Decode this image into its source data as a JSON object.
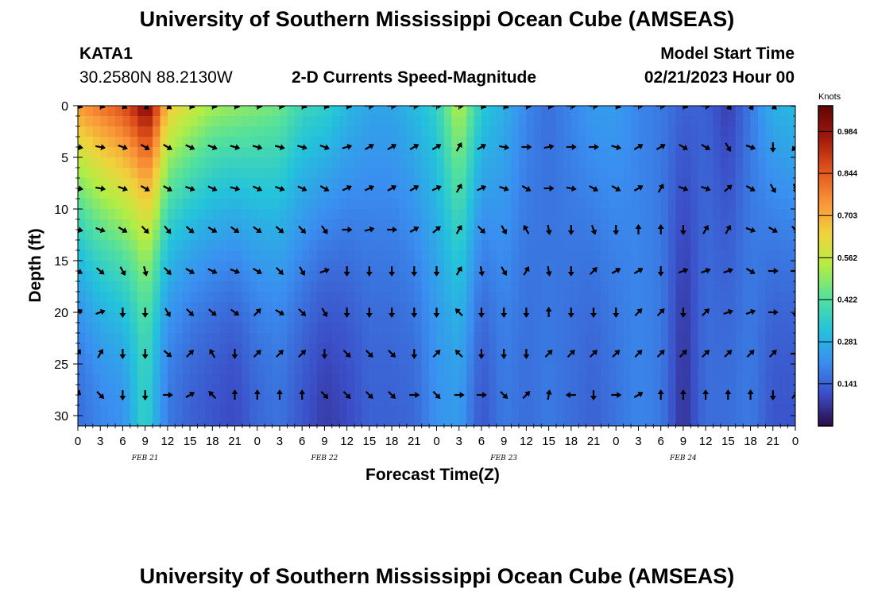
{
  "header": {
    "title": "University of Southern Mississippi Ocean Cube (AMSEAS)",
    "station": "KATA1",
    "coords": "30.2580N  88.2130W",
    "subtitle": "2-D Currents Speed-Magnitude",
    "model_start_label": "Model Start Time",
    "model_start_value": "02/21/2023 Hour 00"
  },
  "footer": {
    "title": "University of Southern Mississippi Ocean Cube (AMSEAS)"
  },
  "chart_data": {
    "type": "heatmap",
    "title": "2-D Currents Speed-Magnitude",
    "xlabel": "Forecast Time(Z)",
    "ylabel": "Depth (ft)",
    "x_tick_labels": [
      "0",
      "3",
      "6",
      "9",
      "12",
      "15",
      "18",
      "21",
      "0",
      "3",
      "6",
      "9",
      "12",
      "15",
      "18",
      "21",
      "0",
      "3",
      "6",
      "9",
      "12",
      "15",
      "18",
      "21",
      "0",
      "3",
      "6",
      "9",
      "12",
      "15",
      "18",
      "21",
      "0"
    ],
    "x_range_hours": [
      0,
      96
    ],
    "date_labels": [
      {
        "label": "FEB 21",
        "hour": 9
      },
      {
        "label": "FEB 22",
        "hour": 33
      },
      {
        "label": "FEB 23",
        "hour": 57
      },
      {
        "label": "FEB 24",
        "hour": 81
      }
    ],
    "y_ticks": [
      0,
      5,
      10,
      15,
      20,
      25,
      30
    ],
    "y_range_ft": [
      0,
      31
    ],
    "y_inverted": true,
    "colorbar": {
      "title": "Knots",
      "ticks": [
        "0.984",
        "0.844",
        "0.703",
        "0.562",
        "0.422",
        "0.281",
        "0.141"
      ],
      "tick_values": [
        0.984,
        0.844,
        0.703,
        0.562,
        0.422,
        0.281,
        0.141
      ],
      "range": [
        0,
        1.07
      ],
      "colors": [
        "#2a0a46",
        "#3b4ec7",
        "#3a8ff0",
        "#23c3dc",
        "#54e19c",
        "#b2ee44",
        "#f2d23c",
        "#f99338",
        "#e2531b",
        "#a2180c",
        "#5f0606"
      ]
    },
    "speed_profile": [
      {
        "hour": 0,
        "surface": 0.74,
        "bottom": 0.16,
        "decay": 0.55
      },
      {
        "hour": 3,
        "surface": 0.8,
        "bottom": 0.2,
        "decay": 0.45
      },
      {
        "hour": 6,
        "surface": 0.86,
        "bottom": 0.22,
        "decay": 0.4
      },
      {
        "hour": 8,
        "surface": 0.95,
        "bottom": 0.32,
        "decay": 0.6
      },
      {
        "hour": 9,
        "surface": 1.03,
        "bottom": 0.38,
        "decay": 0.7
      },
      {
        "hour": 10,
        "surface": 0.96,
        "bottom": 0.3,
        "decay": 0.55
      },
      {
        "hour": 12,
        "surface": 0.66,
        "bottom": 0.18,
        "decay": 0.55
      },
      {
        "hour": 15,
        "surface": 0.58,
        "bottom": 0.14,
        "decay": 0.55
      },
      {
        "hour": 18,
        "surface": 0.52,
        "bottom": 0.12,
        "decay": 0.55
      },
      {
        "hour": 21,
        "surface": 0.5,
        "bottom": 0.1,
        "decay": 0.5
      },
      {
        "hour": 24,
        "surface": 0.48,
        "bottom": 0.15,
        "decay": 0.5
      },
      {
        "hour": 27,
        "surface": 0.46,
        "bottom": 0.17,
        "decay": 0.5
      },
      {
        "hour": 30,
        "surface": 0.38,
        "bottom": 0.12,
        "decay": 0.4
      },
      {
        "hour": 33,
        "surface": 0.36,
        "bottom": 0.08,
        "decay": 0.4
      },
      {
        "hour": 36,
        "surface": 0.3,
        "bottom": 0.1,
        "decay": 0.4
      },
      {
        "hour": 39,
        "surface": 0.26,
        "bottom": 0.14,
        "decay": 0.4
      },
      {
        "hour": 42,
        "surface": 0.26,
        "bottom": 0.14,
        "decay": 0.4
      },
      {
        "hour": 45,
        "surface": 0.3,
        "bottom": 0.15,
        "decay": 0.4
      },
      {
        "hour": 48,
        "surface": 0.36,
        "bottom": 0.22,
        "decay": 0.45
      },
      {
        "hour": 51,
        "surface": 0.55,
        "bottom": 0.24,
        "decay": 0.35
      },
      {
        "hour": 54,
        "surface": 0.34,
        "bottom": 0.12,
        "decay": 0.4
      },
      {
        "hour": 57,
        "surface": 0.28,
        "bottom": 0.18,
        "decay": 0.4
      },
      {
        "hour": 60,
        "surface": 0.2,
        "bottom": 0.16,
        "decay": 0.4
      },
      {
        "hour": 63,
        "surface": 0.16,
        "bottom": 0.18,
        "decay": 0.4
      },
      {
        "hour": 66,
        "surface": 0.2,
        "bottom": 0.16,
        "decay": 0.4
      },
      {
        "hour": 69,
        "surface": 0.24,
        "bottom": 0.14,
        "decay": 0.4
      },
      {
        "hour": 72,
        "surface": 0.24,
        "bottom": 0.17,
        "decay": 0.4
      },
      {
        "hour": 75,
        "surface": 0.2,
        "bottom": 0.2,
        "decay": 0.4
      },
      {
        "hour": 78,
        "surface": 0.18,
        "bottom": 0.18,
        "decay": 0.4
      },
      {
        "hour": 81,
        "surface": 0.14,
        "bottom": 0.06,
        "decay": 0.4
      },
      {
        "hour": 84,
        "surface": 0.14,
        "bottom": 0.16,
        "decay": 0.4
      },
      {
        "hour": 87,
        "surface": 0.08,
        "bottom": 0.16,
        "decay": 0.4
      },
      {
        "hour": 90,
        "surface": 0.18,
        "bottom": 0.18,
        "decay": 0.4
      },
      {
        "hour": 93,
        "surface": 0.28,
        "bottom": 0.12,
        "decay": 0.4
      },
      {
        "hour": 96,
        "surface": 0.3,
        "bottom": 0.12,
        "decay": 0.4
      }
    ],
    "vector_depths_ft": [
      0,
      4,
      8,
      12,
      16,
      20,
      24,
      28
    ],
    "vector_hours": [
      0,
      3,
      6,
      9,
      12,
      15,
      18,
      21,
      24,
      27,
      30,
      33,
      36,
      39,
      42,
      45,
      48,
      51,
      54,
      57,
      60,
      63,
      66,
      69,
      72,
      75,
      78,
      81,
      84,
      87,
      90,
      93,
      96
    ],
    "vectors_deg_cw_from_east": [
      [
        20,
        20,
        30,
        45,
        40,
        20,
        15,
        15,
        10,
        10,
        20,
        20,
        15,
        0,
        0,
        0,
        0,
        0,
        20,
        25,
        10,
        10,
        0,
        0,
        20,
        0,
        0,
        20,
        0,
        50,
        60,
        45,
        0
      ],
      [
        10,
        10,
        20,
        30,
        30,
        25,
        20,
        15,
        15,
        15,
        15,
        20,
        -15,
        -30,
        -30,
        -30,
        -30,
        -60,
        -30,
        10,
        0,
        -10,
        0,
        0,
        15,
        -30,
        -30,
        30,
        30,
        60,
        20,
        90,
        130
      ],
      [
        10,
        10,
        20,
        30,
        30,
        20,
        25,
        15,
        25,
        20,
        25,
        30,
        -25,
        -25,
        -30,
        -30,
        -25,
        -60,
        -25,
        20,
        30,
        0,
        10,
        30,
        30,
        -30,
        -60,
        20,
        20,
        -40,
        30,
        60,
        70
      ],
      [
        15,
        20,
        30,
        45,
        50,
        40,
        30,
        35,
        35,
        40,
        45,
        55,
        0,
        -15,
        0,
        -30,
        -40,
        -60,
        45,
        60,
        -120,
        80,
        90,
        70,
        90,
        -90,
        -90,
        90,
        -60,
        -60,
        20,
        30,
        45
      ],
      [
        30,
        40,
        60,
        75,
        45,
        30,
        25,
        20,
        30,
        45,
        60,
        -20,
        90,
        90,
        90,
        90,
        90,
        -60,
        80,
        60,
        -60,
        80,
        90,
        -45,
        -30,
        -30,
        90,
        -20,
        -20,
        -20,
        30,
        0,
        0
      ],
      [
        -30,
        -20,
        90,
        90,
        60,
        45,
        40,
        35,
        -45,
        30,
        45,
        60,
        90,
        90,
        90,
        90,
        90,
        -135,
        90,
        90,
        90,
        -90,
        90,
        90,
        90,
        -45,
        -45,
        90,
        -45,
        -20,
        -20,
        0,
        90
      ],
      [
        -60,
        -60,
        90,
        90,
        40,
        -45,
        -120,
        90,
        -45,
        -45,
        -45,
        90,
        45,
        45,
        45,
        90,
        -45,
        -135,
        90,
        90,
        90,
        -45,
        -45,
        -45,
        -45,
        -45,
        -45,
        -45,
        -45,
        -45,
        -45,
        -45,
        0
      ],
      [
        -70,
        45,
        90,
        90,
        0,
        -30,
        -135,
        -90,
        -90,
        -90,
        -90,
        45,
        45,
        45,
        45,
        0,
        45,
        0,
        0,
        45,
        -45,
        -80,
        180,
        90,
        0,
        -30,
        -90,
        -90,
        -90,
        -90,
        -90,
        90,
        -45
      ]
    ]
  }
}
